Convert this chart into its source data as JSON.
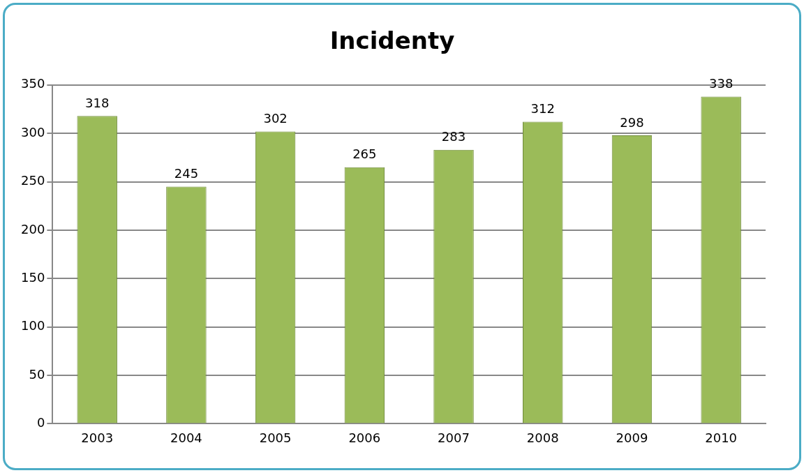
{
  "chart_data": {
    "type": "bar",
    "title": "Incidenty",
    "categories": [
      "2003",
      "2004",
      "2005",
      "2006",
      "2007",
      "2008",
      "2009",
      "2010"
    ],
    "values": [
      318,
      245,
      302,
      265,
      283,
      312,
      298,
      338
    ],
    "color": "#9bbb59",
    "ylim": [
      0,
      350
    ],
    "yticks": [
      0,
      50,
      100,
      150,
      200,
      250,
      300,
      350
    ],
    "grid": "y",
    "data_labels": true,
    "legend": false
  }
}
